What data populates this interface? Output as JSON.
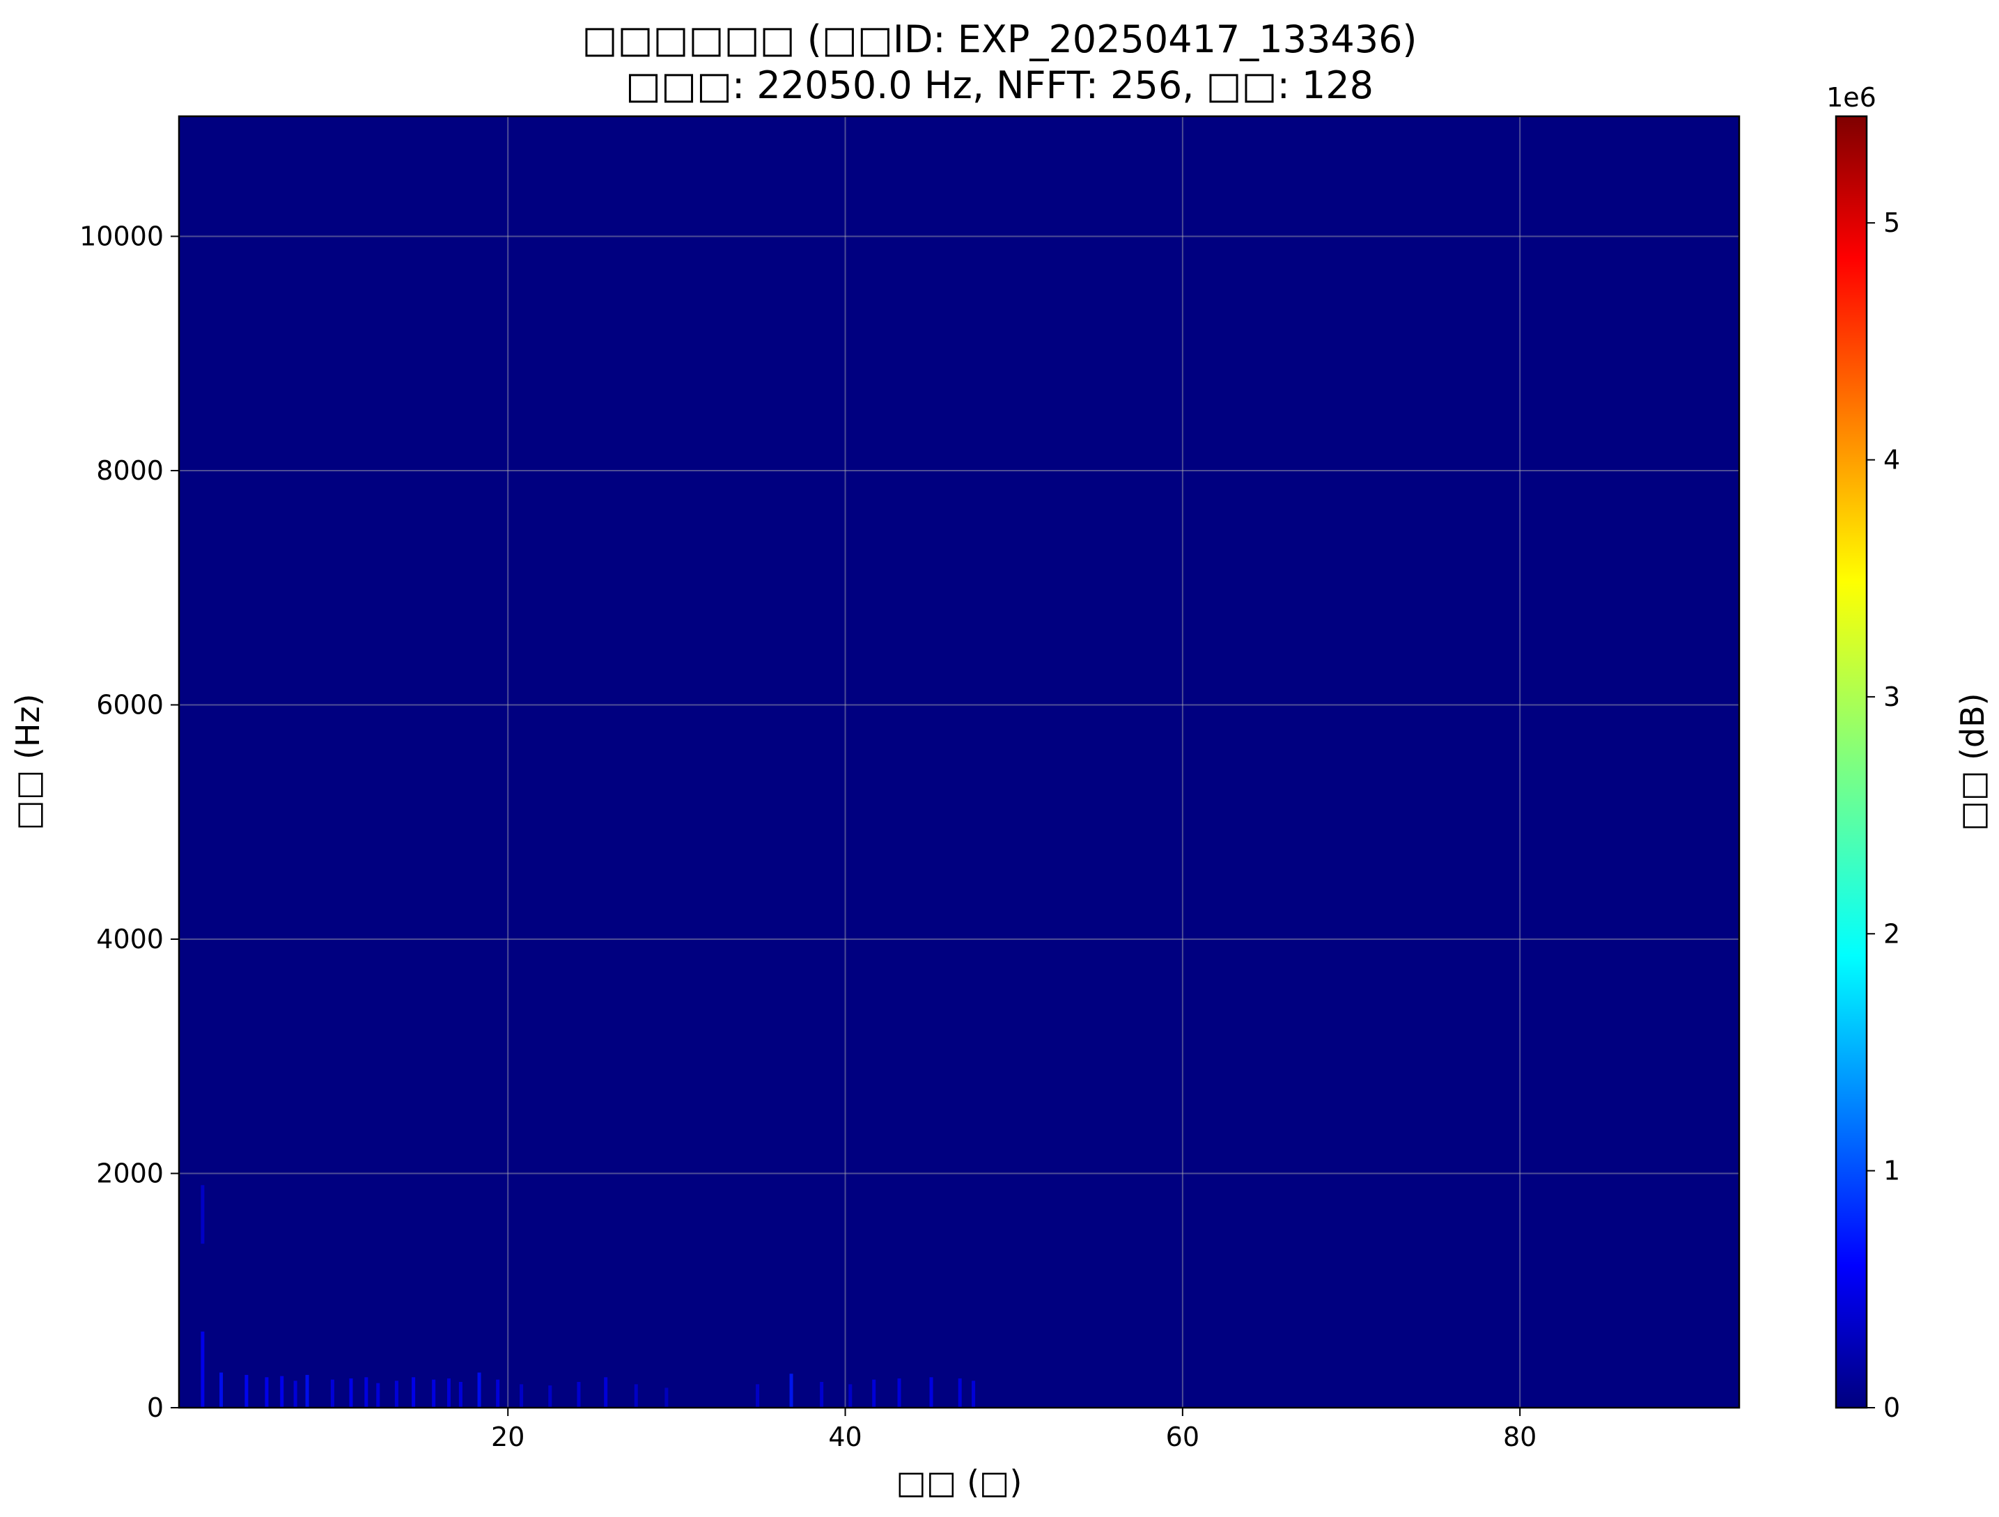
{
  "chart_data": {
    "type": "heatmap",
    "title": "□□□□□□ (□□ID: EXP_20250417_133436)",
    "subtitle": "□□□: 22050.0 Hz, NFFT: 256, □□: 128",
    "xlabel": "□□ (□)",
    "ylabel": "□□ (Hz)",
    "xlim": [
      0.5,
      93
    ],
    "ylim": [
      0,
      11025
    ],
    "x_ticks": [
      20,
      40,
      60,
      80
    ],
    "y_ticks": [
      0,
      2000,
      4000,
      6000,
      8000,
      10000
    ],
    "grid": true,
    "colormap": "jet",
    "background_level": 0,
    "colorbar": {
      "label": "□□ (dB)",
      "min": 0,
      "max": 5.45,
      "ticks": [
        0,
        1,
        2,
        3,
        4,
        5
      ],
      "exponent_label": "1e6"
    },
    "hotspots": [
      {
        "t": 1.9,
        "f_low": 1400,
        "f_high": 1900,
        "level": 0.08
      },
      {
        "t": 1.9,
        "f_low": 0,
        "f_high": 650,
        "level": 0.12
      },
      {
        "t": 3.0,
        "f_low": 0,
        "f_high": 300,
        "level": 0.14
      },
      {
        "t": 4.5,
        "f_low": 0,
        "f_high": 280,
        "level": 0.13
      },
      {
        "t": 5.7,
        "f_low": 0,
        "f_high": 260,
        "level": 0.12
      },
      {
        "t": 6.6,
        "f_low": 0,
        "f_high": 270,
        "level": 0.12
      },
      {
        "t": 7.4,
        "f_low": 0,
        "f_high": 230,
        "level": 0.1
      },
      {
        "t": 8.1,
        "f_low": 0,
        "f_high": 280,
        "level": 0.14
      },
      {
        "t": 9.6,
        "f_low": 0,
        "f_high": 240,
        "level": 0.1
      },
      {
        "t": 10.7,
        "f_low": 0,
        "f_high": 250,
        "level": 0.12
      },
      {
        "t": 11.6,
        "f_low": 0,
        "f_high": 260,
        "level": 0.11
      },
      {
        "t": 12.3,
        "f_low": 0,
        "f_high": 210,
        "level": 0.1
      },
      {
        "t": 13.4,
        "f_low": 0,
        "f_high": 230,
        "level": 0.1
      },
      {
        "t": 14.4,
        "f_low": 0,
        "f_high": 260,
        "level": 0.12
      },
      {
        "t": 15.6,
        "f_low": 0,
        "f_high": 240,
        "level": 0.11
      },
      {
        "t": 16.5,
        "f_low": 0,
        "f_high": 250,
        "level": 0.1
      },
      {
        "t": 17.2,
        "f_low": 0,
        "f_high": 220,
        "level": 0.1
      },
      {
        "t": 18.3,
        "f_low": 0,
        "f_high": 300,
        "level": 0.14
      },
      {
        "t": 19.4,
        "f_low": 0,
        "f_high": 240,
        "level": 0.1
      },
      {
        "t": 20.8,
        "f_low": 0,
        "f_high": 200,
        "level": 0.08
      },
      {
        "t": 22.5,
        "f_low": 0,
        "f_high": 190,
        "level": 0.08
      },
      {
        "t": 24.2,
        "f_low": 0,
        "f_high": 220,
        "level": 0.09
      },
      {
        "t": 25.8,
        "f_low": 0,
        "f_high": 260,
        "level": 0.1
      },
      {
        "t": 27.6,
        "f_low": 0,
        "f_high": 200,
        "level": 0.08
      },
      {
        "t": 29.4,
        "f_low": 0,
        "f_high": 170,
        "level": 0.07
      },
      {
        "t": 34.8,
        "f_low": 0,
        "f_high": 200,
        "level": 0.08
      },
      {
        "t": 36.8,
        "f_low": 0,
        "f_high": 290,
        "level": 0.15
      },
      {
        "t": 38.6,
        "f_low": 0,
        "f_high": 220,
        "level": 0.09
      },
      {
        "t": 40.3,
        "f_low": 0,
        "f_high": 200,
        "level": 0.08
      },
      {
        "t": 41.7,
        "f_low": 0,
        "f_high": 240,
        "level": 0.1
      },
      {
        "t": 43.2,
        "f_low": 0,
        "f_high": 250,
        "level": 0.1
      },
      {
        "t": 45.1,
        "f_low": 0,
        "f_high": 260,
        "level": 0.11
      },
      {
        "t": 46.8,
        "f_low": 0,
        "f_high": 250,
        "level": 0.1
      },
      {
        "t": 47.6,
        "f_low": 0,
        "f_high": 230,
        "level": 0.1
      }
    ]
  }
}
